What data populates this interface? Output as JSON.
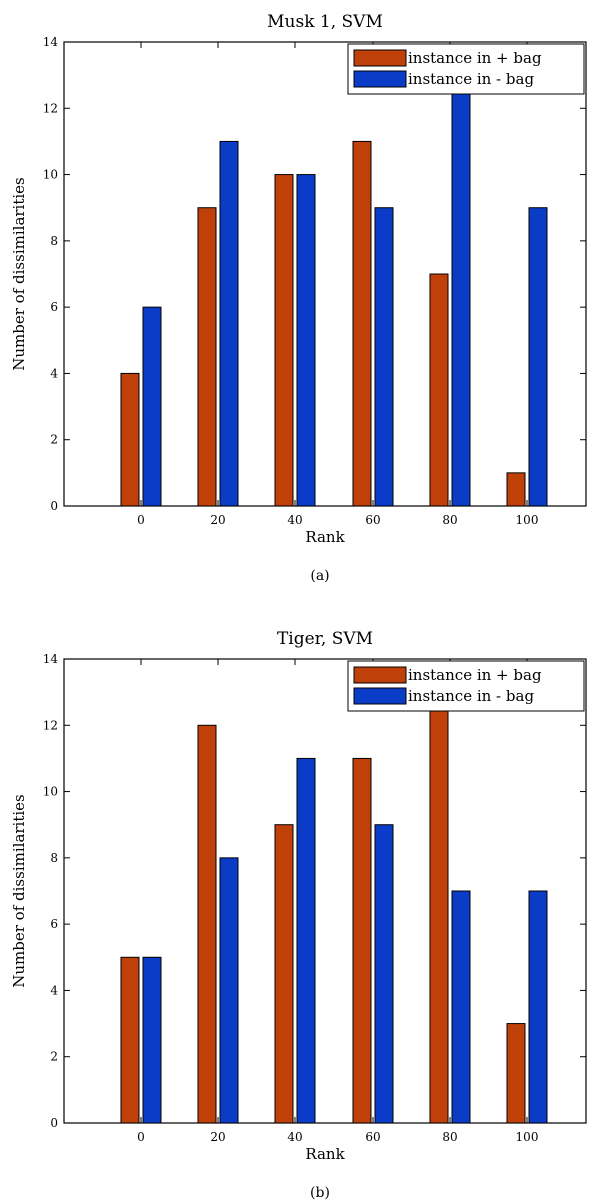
{
  "chart_data": [
    {
      "type": "bar",
      "title": "Musk 1, SVM",
      "caption": "(a)",
      "xlabel": "Rank",
      "ylabel": "Number of dissimilarities",
      "categories": [
        "0",
        "20",
        "40",
        "60",
        "80",
        "100"
      ],
      "ylim": [
        0,
        14
      ],
      "yticks": [
        0,
        2,
        4,
        6,
        8,
        10,
        12,
        14
      ],
      "legend_position": "top-right",
      "grid": false,
      "series": [
        {
          "name": "instance in + bag",
          "color": "#c0400a",
          "values": [
            4,
            9,
            10,
            11,
            7,
            1
          ]
        },
        {
          "name": "instance in - bag",
          "color": "#0a3cc8",
          "values": [
            6,
            11,
            10,
            9,
            13,
            9
          ]
        }
      ]
    },
    {
      "type": "bar",
      "title": "Tiger, SVM",
      "caption": "(b)",
      "xlabel": "Rank",
      "ylabel": "Number of dissimilarities",
      "categories": [
        "0",
        "20",
        "40",
        "60",
        "80",
        "100"
      ],
      "ylim": [
        0,
        14
      ],
      "yticks": [
        0,
        2,
        4,
        6,
        8,
        10,
        12,
        14
      ],
      "legend_position": "top-right",
      "grid": false,
      "series": [
        {
          "name": "instance in + bag",
          "color": "#c0400a",
          "values": [
            5,
            12,
            9,
            11,
            13,
            3
          ]
        },
        {
          "name": "instance in - bag",
          "color": "#0a3cc8",
          "values": [
            5,
            8,
            11,
            9,
            7,
            7
          ]
        }
      ]
    }
  ]
}
